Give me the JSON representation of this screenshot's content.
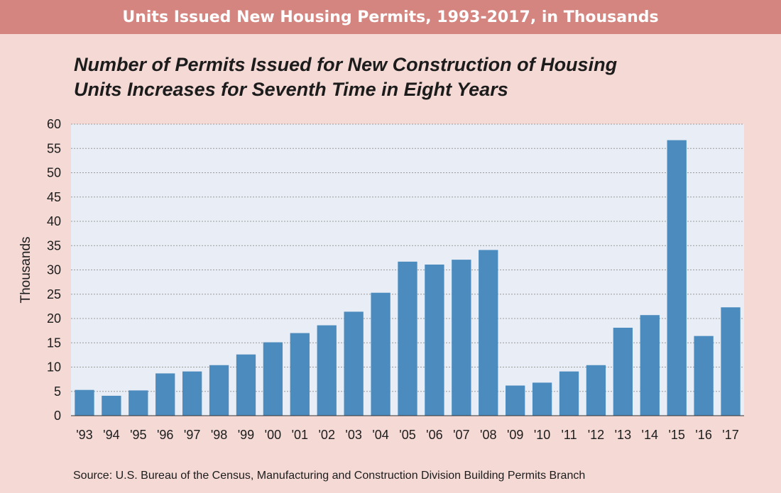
{
  "banner_title": "Units Issued New Housing Permits, 1993-2017, in Thousands",
  "subtitle_line1": "Number of Permits Issued for New Construction of Housing",
  "subtitle_line2": "Units Increases for Seventh Time in Eight Years",
  "source": "Source: U.S. Bureau of the Census, Manufacturing and Construction Division Building Permits Branch",
  "colors": {
    "banner": "#d4857f",
    "background": "#f4d9d5",
    "plot_area": "#e9eef6",
    "bar": "#4b8bbe"
  },
  "chart_data": {
    "type": "bar",
    "title": "Number of Permits Issued for New Construction of Housing Units Increases for Seventh Time in Eight Years",
    "xlabel": "",
    "ylabel": "Thousands",
    "ylim": [
      0,
      60
    ],
    "yticks": [
      0,
      5,
      10,
      15,
      20,
      25,
      30,
      35,
      40,
      45,
      50,
      55,
      60
    ],
    "grid": true,
    "categories": [
      "'93",
      "'94",
      "'95",
      "'96",
      "'97",
      "'98",
      "'99",
      "'00",
      "'01",
      "'02",
      "'03",
      "'04",
      "'05",
      "'06",
      "'07",
      "'08",
      "'09",
      "'10",
      "'11",
      "'12",
      "'13",
      "'14",
      "'15",
      "'16",
      "'17"
    ],
    "values": [
      5.3,
      4.1,
      5.2,
      8.7,
      9.1,
      10.4,
      12.6,
      15.1,
      17.0,
      18.6,
      21.4,
      25.3,
      31.7,
      31.1,
      32.1,
      34.1,
      6.2,
      6.8,
      9.1,
      10.4,
      18.1,
      20.7,
      56.7,
      16.4,
      22.3
    ]
  }
}
